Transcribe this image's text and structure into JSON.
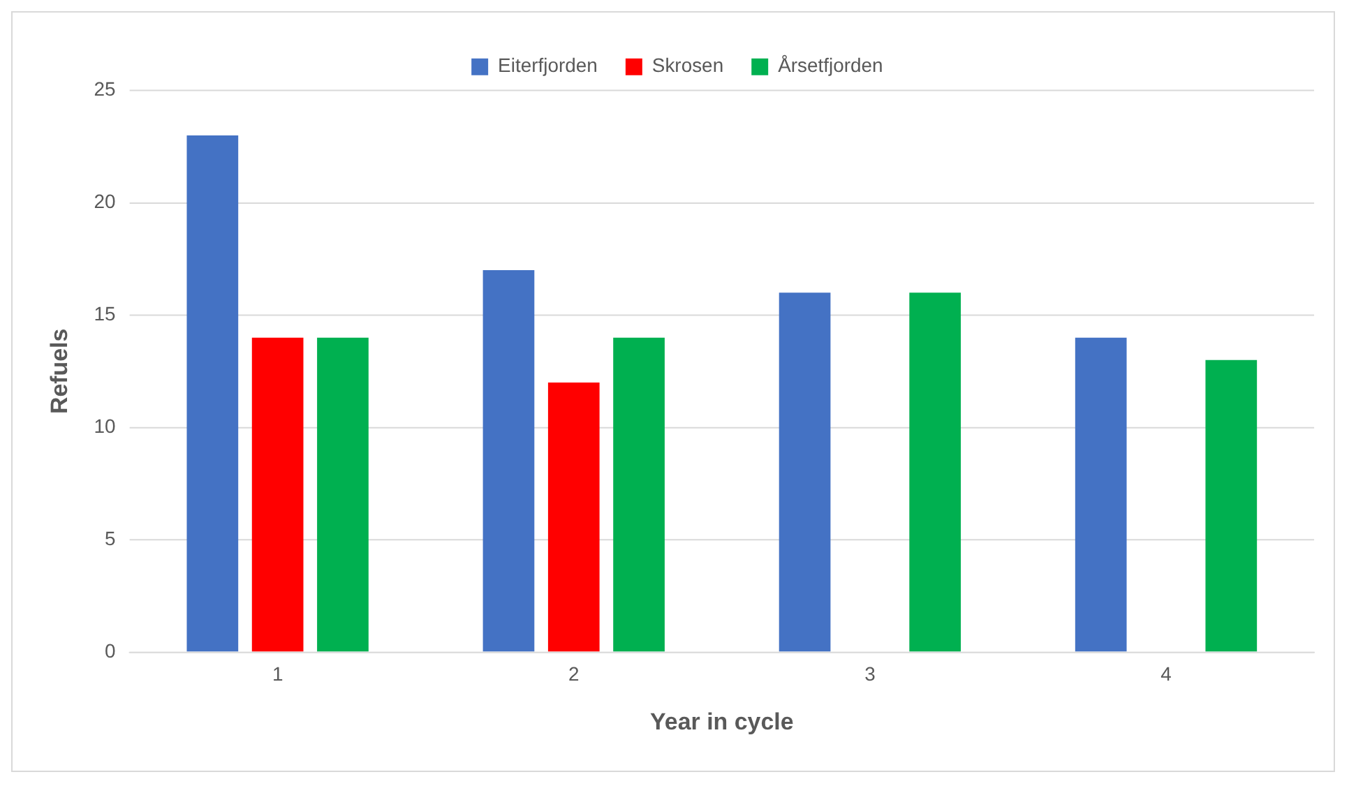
{
  "chart_data": {
    "type": "bar",
    "xlabel": "Year in cycle",
    "ylabel": "Refuels",
    "categories": [
      "1",
      "2",
      "3",
      "4"
    ],
    "series": [
      {
        "name": "Eiterfjorden",
        "color": "#4472c4",
        "values": [
          23,
          17,
          16,
          14
        ]
      },
      {
        "name": "Skrosen",
        "color": "#ff0000",
        "values": [
          14,
          12,
          null,
          null
        ]
      },
      {
        "name": "Årsetfjorden",
        "color": "#00b050",
        "values": [
          14,
          14,
          16,
          13
        ]
      }
    ],
    "ylim": [
      0,
      25
    ],
    "yticks": [
      0,
      5,
      10,
      15,
      20,
      25
    ],
    "grid": "y",
    "legend": "top"
  }
}
